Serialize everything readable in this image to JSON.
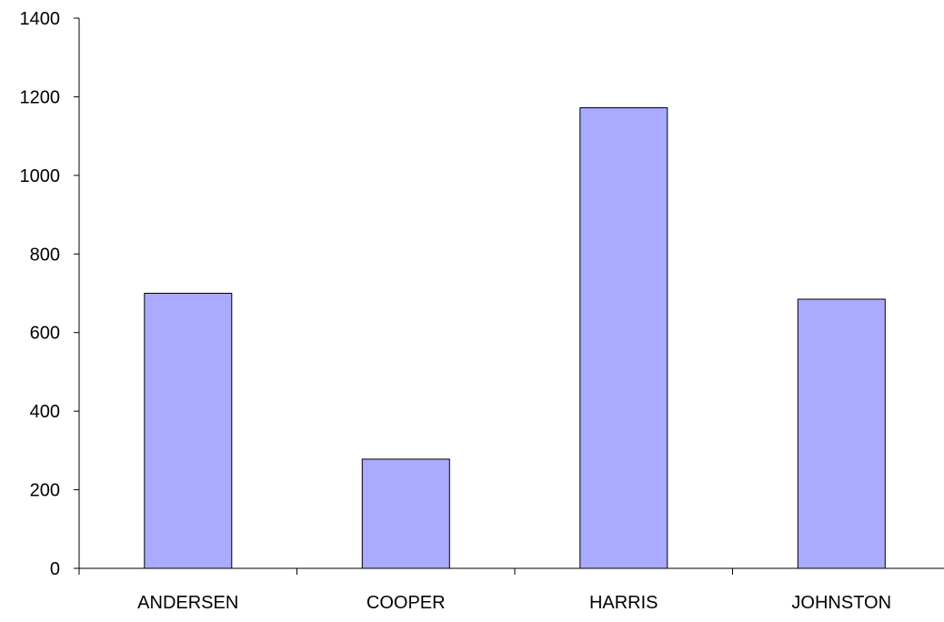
{
  "chart_data": {
    "type": "bar",
    "title": "",
    "xlabel": "",
    "ylabel": "",
    "categories": [
      "ANDERSEN",
      "COOPER",
      "HARRIS",
      "JOHNSTON"
    ],
    "values": [
      700,
      278,
      1172,
      685
    ],
    "ylim": [
      0,
      1400
    ],
    "yticks": [
      0,
      200,
      400,
      600,
      800,
      1000,
      1200,
      1400
    ],
    "ytick_labels": [
      "0",
      "200",
      "400",
      "600",
      "800",
      "1000",
      "1200",
      "1400"
    ],
    "grid": false,
    "legend": "none",
    "colors": {
      "bar_fill": "#aaaaff",
      "bar_stroke": "#000000",
      "axis": "#000000"
    }
  }
}
